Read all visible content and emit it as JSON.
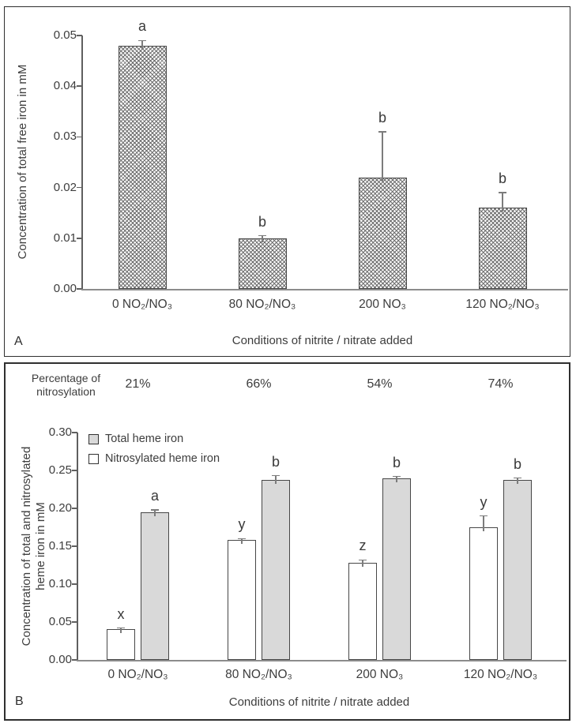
{
  "chart_data": [
    {
      "type": "bar",
      "panel_label": "A",
      "title": "",
      "categories": [
        "0 NO₂/NO₃",
        "80 NO₂/NO₃",
        "200 NO₃",
        "120 NO₂/NO₃"
      ],
      "values": [
        0.048,
        0.01,
        0.022,
        0.016
      ],
      "errors_upper": [
        0.001,
        0.0005,
        0.009,
        0.003
      ],
      "sig_letters": [
        "a",
        "b",
        "b",
        "b"
      ],
      "xlabel": "Conditions of nitrite / nitrate added",
      "ylabel": "Concentration of total free iron in mM",
      "ylim": [
        0,
        0.05
      ],
      "yticks": [
        "0.00",
        "0.01",
        "0.02",
        "0.03",
        "0.04",
        "0.05"
      ],
      "grid": "off",
      "legend": "none",
      "bar_pattern": "diagonal-weave-hatch",
      "colors": {
        "bar_fill": "#fcfcfc",
        "hatch": "#6b6b6b",
        "bar_border": "#474747"
      }
    },
    {
      "type": "grouped-bar",
      "panel_label": "B",
      "title": "",
      "categories": [
        "0 NO₂/NO₃",
        "80 NO₂/NO₃",
        "200 NO₃",
        "120 NO₂/NO₃"
      ],
      "series": [
        {
          "name": "Total heme iron",
          "fill": "#d9d9d9",
          "position": "right",
          "values": [
            0.195,
            0.238,
            0.24,
            0.238
          ],
          "errors_upper": [
            0.003,
            0.005,
            0.002,
            0.002
          ],
          "sig_letters": [
            "a",
            "b",
            "b",
            "b"
          ]
        },
        {
          "name": "Nitrosylated heme iron",
          "fill": "#ffffff",
          "position": "left",
          "values": [
            0.041,
            0.158,
            0.128,
            0.175
          ],
          "errors_upper": [
            0.001,
            0.002,
            0.004,
            0.015
          ],
          "sig_letters": [
            "x",
            "y",
            "z",
            "y"
          ]
        }
      ],
      "annotation_header": {
        "label": "Percentage of nitrosylation",
        "values": [
          "21%",
          "66%",
          "54%",
          "74%"
        ]
      },
      "xlabel": "Conditions of nitrite / nitrate added",
      "ylabel": "Concentration of total and nitrosylated\nheme iron in mM",
      "ylim": [
        0,
        0.3
      ],
      "yticks": [
        "0.00",
        "0.05",
        "0.10",
        "0.15",
        "0.20",
        "0.25",
        "0.30"
      ],
      "grid": "off",
      "legend_position": "top-left"
    }
  ]
}
